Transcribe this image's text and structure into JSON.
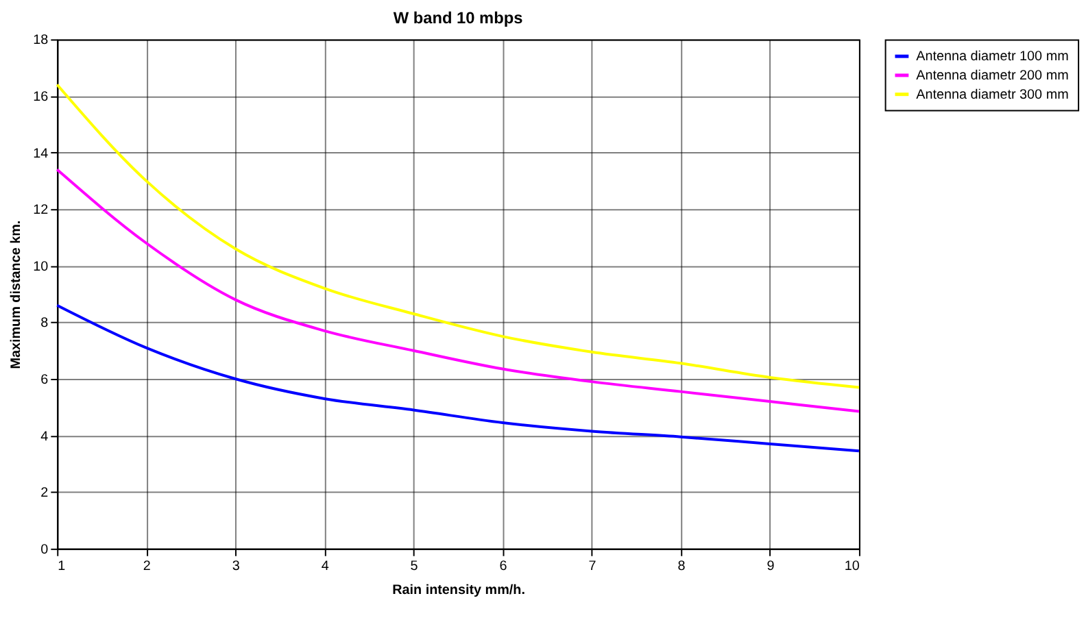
{
  "chart_data": {
    "type": "line",
    "title": "W band 10 mbps",
    "xlabel": "Rain intensity mm/h.",
    "ylabel": "Maximum distance km.",
    "x": [
      1,
      2,
      3,
      4,
      5,
      6,
      7,
      8,
      9,
      10
    ],
    "series": [
      {
        "name": "Antenna diametr 100 mm",
        "color": "#0000ff",
        "values": [
          8.6,
          7.1,
          6.0,
          5.3,
          4.9,
          4.45,
          4.15,
          3.95,
          3.7,
          3.45
        ]
      },
      {
        "name": "Antenna diametr 200 mm",
        "color": "#ff00ff",
        "values": [
          13.4,
          10.8,
          8.8,
          7.7,
          7.0,
          6.35,
          5.9,
          5.55,
          5.2,
          4.85
        ]
      },
      {
        "name": "Antenna diametr 300 mm",
        "color": "#ffff00",
        "values": [
          16.4,
          13.0,
          10.6,
          9.2,
          8.3,
          7.5,
          6.95,
          6.55,
          6.05,
          5.7
        ]
      }
    ],
    "xlim": [
      1,
      10
    ],
    "xticks": [
      1,
      2,
      3,
      4,
      5,
      6,
      7,
      8,
      9,
      10
    ],
    "ylim": [
      0,
      18
    ],
    "yticks": [
      0,
      2,
      4,
      6,
      8,
      10,
      12,
      14,
      16,
      18
    ],
    "grid": true,
    "legend": "right",
    "marker": "none",
    "line_style": "solid"
  }
}
